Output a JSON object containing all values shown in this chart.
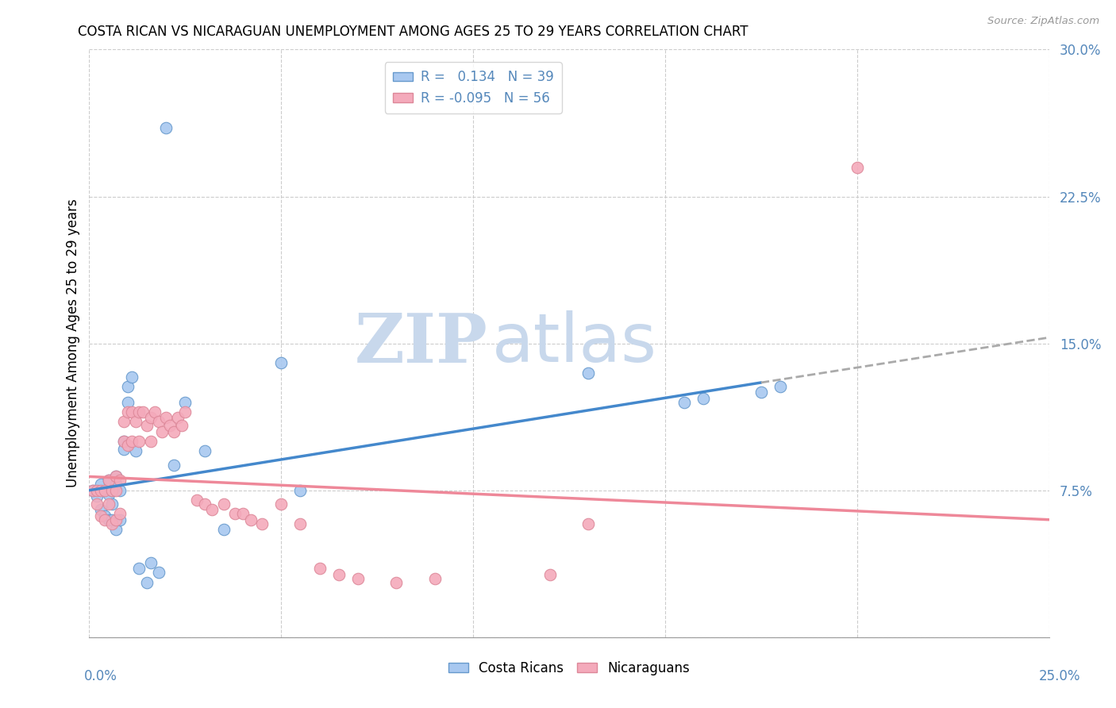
{
  "title": "COSTA RICAN VS NICARAGUAN UNEMPLOYMENT AMONG AGES 25 TO 29 YEARS CORRELATION CHART",
  "source": "Source: ZipAtlas.com",
  "ylabel": "Unemployment Among Ages 25 to 29 years",
  "xlim": [
    0.0,
    0.25
  ],
  "ylim": [
    0.0,
    0.3
  ],
  "legend_cr_r": "0.134",
  "legend_cr_n": "39",
  "legend_ni_r": "-0.095",
  "legend_ni_n": "56",
  "blue_fill": "#A8C8F0",
  "blue_edge": "#6699CC",
  "pink_fill": "#F4AABB",
  "pink_edge": "#DD8899",
  "blue_line": "#4488CC",
  "pink_line": "#EE8899",
  "dash_line": "#AAAAAA",
  "tick_color": "#5588BB",
  "background_color": "#FFFFFF",
  "grid_color": "#CCCCCC",
  "watermark_zip": "ZIP",
  "watermark_atlas": "atlas",
  "cr_x": [
    0.001,
    0.002,
    0.003,
    0.003,
    0.004,
    0.004,
    0.005,
    0.005,
    0.005,
    0.006,
    0.006,
    0.006,
    0.007,
    0.007,
    0.007,
    0.008,
    0.008,
    0.009,
    0.009,
    0.01,
    0.01,
    0.011,
    0.012,
    0.013,
    0.015,
    0.016,
    0.018,
    0.02,
    0.022,
    0.025,
    0.03,
    0.035,
    0.05,
    0.055,
    0.13,
    0.155,
    0.16,
    0.175,
    0.18
  ],
  "cr_y": [
    0.075,
    0.072,
    0.078,
    0.065,
    0.075,
    0.062,
    0.08,
    0.073,
    0.06,
    0.075,
    0.068,
    0.06,
    0.082,
    0.078,
    0.055,
    0.075,
    0.06,
    0.1,
    0.096,
    0.128,
    0.12,
    0.133,
    0.095,
    0.035,
    0.028,
    0.038,
    0.033,
    0.26,
    0.088,
    0.12,
    0.095,
    0.055,
    0.14,
    0.075,
    0.135,
    0.12,
    0.122,
    0.125,
    0.128
  ],
  "ni_x": [
    0.001,
    0.002,
    0.002,
    0.003,
    0.003,
    0.004,
    0.004,
    0.005,
    0.005,
    0.006,
    0.006,
    0.007,
    0.007,
    0.007,
    0.008,
    0.008,
    0.009,
    0.009,
    0.01,
    0.01,
    0.011,
    0.011,
    0.012,
    0.013,
    0.013,
    0.014,
    0.015,
    0.016,
    0.016,
    0.017,
    0.018,
    0.019,
    0.02,
    0.021,
    0.022,
    0.023,
    0.024,
    0.025,
    0.028,
    0.03,
    0.032,
    0.035,
    0.038,
    0.04,
    0.042,
    0.045,
    0.05,
    0.055,
    0.06,
    0.065,
    0.07,
    0.08,
    0.09,
    0.12,
    0.2,
    0.13
  ],
  "ni_y": [
    0.075,
    0.075,
    0.068,
    0.075,
    0.062,
    0.075,
    0.06,
    0.08,
    0.068,
    0.075,
    0.058,
    0.082,
    0.075,
    0.06,
    0.08,
    0.063,
    0.11,
    0.1,
    0.115,
    0.098,
    0.115,
    0.1,
    0.11,
    0.115,
    0.1,
    0.115,
    0.108,
    0.112,
    0.1,
    0.115,
    0.11,
    0.105,
    0.112,
    0.108,
    0.105,
    0.112,
    0.108,
    0.115,
    0.07,
    0.068,
    0.065,
    0.068,
    0.063,
    0.063,
    0.06,
    0.058,
    0.068,
    0.058,
    0.035,
    0.032,
    0.03,
    0.028,
    0.03,
    0.032,
    0.24,
    0.058
  ],
  "cr_trend_x0": 0.0,
  "cr_trend_x_solid_end": 0.175,
  "cr_trend_x_dash_end": 0.25,
  "cr_trend_y0": 0.075,
  "cr_trend_y_solid_end": 0.13,
  "cr_trend_y_dash_end": 0.153,
  "ni_trend_x0": 0.0,
  "ni_trend_x_end": 0.25,
  "ni_trend_y0": 0.082,
  "ni_trend_y_end": 0.06
}
